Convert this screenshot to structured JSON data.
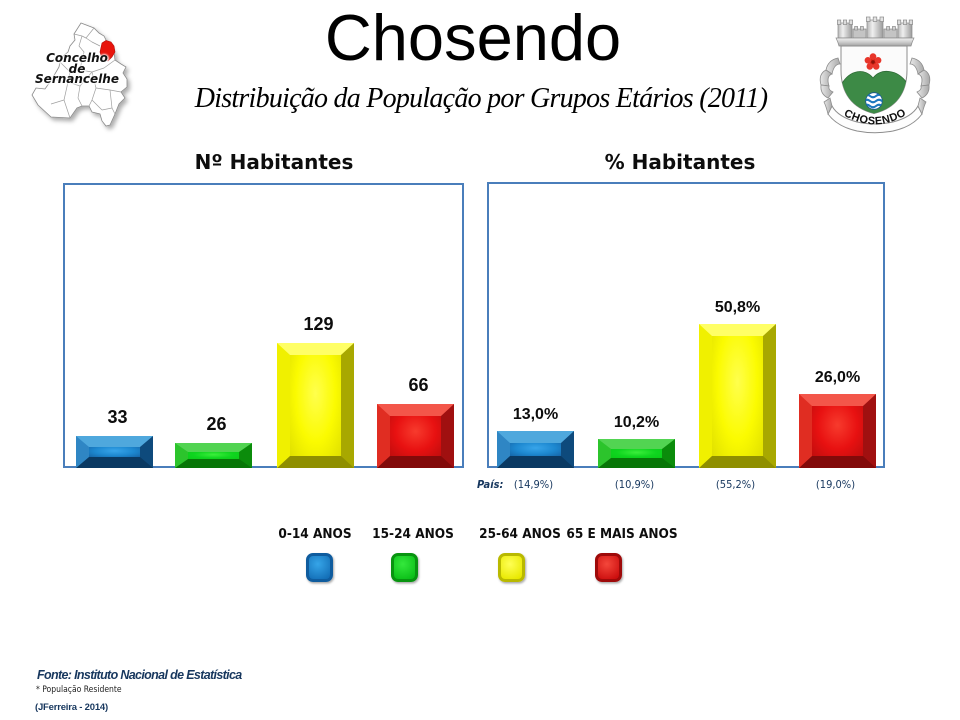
{
  "header": {
    "title": "Chosendo",
    "subtitle": "Distribuição da População por Grupos Etários (2011)"
  },
  "map": {
    "caption_lines": [
      "Concelho",
      "de",
      "Sernancelhe"
    ],
    "highlight_color": "#e8140c"
  },
  "crest": {
    "banner_text": "CHOSENDO"
  },
  "chart_data": [
    {
      "type": "bar",
      "title": "Nº Habitantes",
      "categories": [
        "0-14 ANOS",
        "15-24 ANOS",
        "25-64 ANOS",
        "65 E MAIS ANOS"
      ],
      "values": [
        33,
        26,
        129,
        66
      ],
      "value_labels": [
        "33",
        "26",
        "129",
        "66"
      ],
      "ylim": [
        0,
        294
      ],
      "grid": false,
      "legend_position": "bottom"
    },
    {
      "type": "bar",
      "title": "% Habitantes",
      "categories": [
        "0-14 ANOS",
        "15-24 ANOS",
        "25-64 ANOS",
        "65 E MAIS ANOS"
      ],
      "values": [
        13.0,
        10.2,
        50.8,
        26.0
      ],
      "value_labels": [
        "13,0%",
        "10,2%",
        "50,8%",
        "26,0%"
      ],
      "ylim": [
        0,
        100
      ],
      "grid": false,
      "legend_position": "bottom",
      "annotation_row": {
        "label": "País:",
        "values": [
          "(14,9%)",
          "(10,9%)",
          "(55,2%)",
          "(19,0%)"
        ]
      }
    }
  ],
  "series_colors": [
    "#1c86d1",
    "#12c41f",
    "#f8f800",
    "#ee1111"
  ],
  "legend": {
    "items": [
      {
        "label": "0-14 ANOS",
        "color": "#1c86d1"
      },
      {
        "label": "15-24 ANOS",
        "color": "#12c41f"
      },
      {
        "label": "25-64 ANOS",
        "color": "#f8f800"
      },
      {
        "label": "65 E MAIS ANOS",
        "color": "#ee1111"
      }
    ]
  },
  "footer": {
    "source": "Fonte: Instituto Nacional de Estatística",
    "note": "*  População Residente",
    "credit": "(JFerreira  - 2014)"
  }
}
